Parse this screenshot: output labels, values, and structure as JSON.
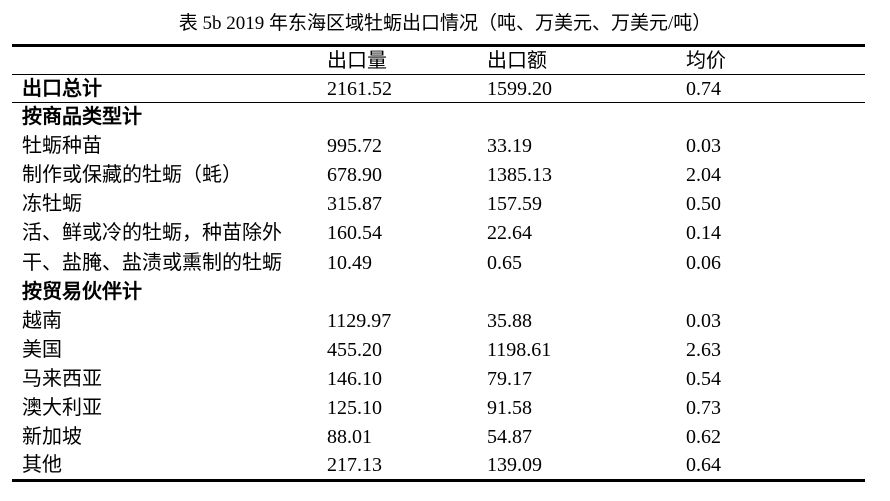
{
  "page": {
    "background_color": "#ffffff",
    "text_color": "#000000"
  },
  "title": "表 5b 2019 年东海区域牡蛎出口情况（吨、万美元、万美元/吨）",
  "table": {
    "headers": {
      "label": "",
      "volume": "出口量",
      "value": "出口额",
      "price": "均价"
    },
    "units": {
      "volume": "吨",
      "value": "万美元",
      "price": "万美元/吨"
    },
    "rows": [
      {
        "label": "出口总计",
        "volume": "2161.52",
        "value": "1599.20",
        "price": "0.74"
      },
      {
        "label": "按商品类型计",
        "volume": "",
        "value": "",
        "price": ""
      },
      {
        "label": "牡蛎种苗",
        "volume": "995.72",
        "value": "33.19",
        "price": "0.03"
      },
      {
        "label": "制作或保藏的牡蛎（蚝）",
        "volume": "678.90",
        "value": "1385.13",
        "price": "2.04"
      },
      {
        "label": "冻牡蛎",
        "volume": "315.87",
        "value": "157.59",
        "price": "0.50"
      },
      {
        "label": "活、鲜或冷的牡蛎，种苗除外",
        "volume": "160.54",
        "value": "22.64",
        "price": "0.14"
      },
      {
        "label": "干、盐腌、盐渍或熏制的牡蛎",
        "volume": "10.49",
        "value": "0.65",
        "price": "0.06"
      },
      {
        "label": "按贸易伙伴计",
        "volume": "",
        "value": "",
        "price": ""
      },
      {
        "label": "越南",
        "volume": "1129.97",
        "value": "35.88",
        "price": "0.03"
      },
      {
        "label": "美国",
        "volume": "455.20",
        "value": "1198.61",
        "price": "2.63"
      },
      {
        "label": "马来西亚",
        "volume": "146.10",
        "value": "79.17",
        "price": "0.54"
      },
      {
        "label": "澳大利亚",
        "volume": "125.10",
        "value": "91.58",
        "price": "0.73"
      },
      {
        "label": "新加坡",
        "volume": "88.01",
        "value": "54.87",
        "price": "0.62"
      },
      {
        "label": "其他",
        "volume": "217.13",
        "value": "139.09",
        "price": "0.64"
      }
    ]
  }
}
